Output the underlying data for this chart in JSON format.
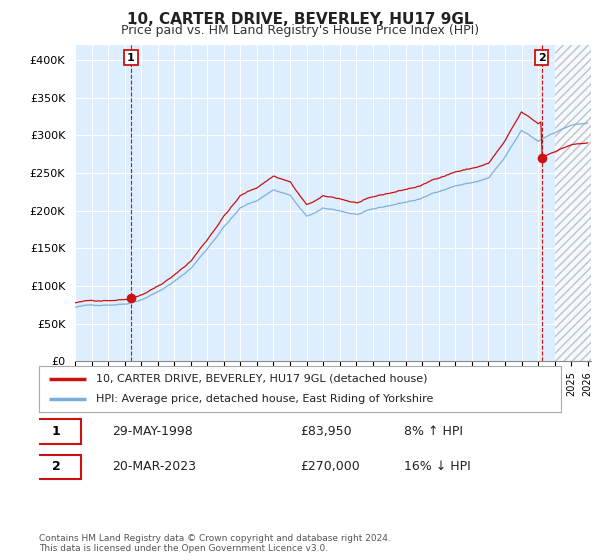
{
  "title": "10, CARTER DRIVE, BEVERLEY, HU17 9GL",
  "subtitle": "Price paid vs. HM Land Registry's House Price Index (HPI)",
  "ylim": [
    0,
    420000
  ],
  "yticks": [
    0,
    50000,
    100000,
    150000,
    200000,
    250000,
    300000,
    350000,
    400000
  ],
  "ytick_labels": [
    "£0",
    "£50K",
    "£100K",
    "£150K",
    "£200K",
    "£250K",
    "£300K",
    "£350K",
    "£400K"
  ],
  "hpi_color": "#7aaed6",
  "price_color": "#cc1111",
  "point1_x": 1998.38,
  "point1_y": 83950,
  "point2_x": 2023.21,
  "point2_y": 270000,
  "hpi_scale": 1.08,
  "hpi_scale2": 0.84,
  "legend_line1": "10, CARTER DRIVE, BEVERLEY, HU17 9GL (detached house)",
  "legend_line2": "HPI: Average price, detached house, East Riding of Yorkshire",
  "table_row1_num": "1",
  "table_row1_date": "29-MAY-1998",
  "table_row1_price": "£83,950",
  "table_row1_hpi": "8% ↑ HPI",
  "table_row2_num": "2",
  "table_row2_date": "20-MAR-2023",
  "table_row2_price": "£270,000",
  "table_row2_hpi": "16% ↓ HPI",
  "footer": "Contains HM Land Registry data © Crown copyright and database right 2024.\nThis data is licensed under the Open Government Licence v3.0.",
  "background_color": "#ffffff",
  "plot_bg_color": "#ddeeff",
  "grid_color": "#ffffff",
  "hatch_start": 2024.0,
  "xlim_left": 1995.0,
  "xlim_right": 2026.2
}
